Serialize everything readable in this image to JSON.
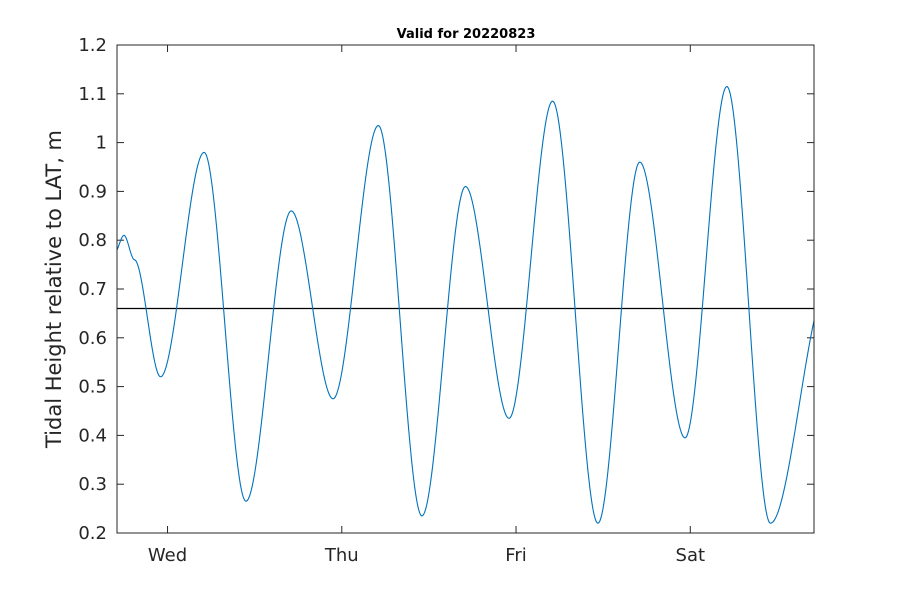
{
  "chart_data": {
    "type": "line",
    "title": "Valid for 20220823",
    "xlabel": "",
    "ylabel": "Tidal Height relative to LAT, m",
    "ylim": [
      0.2,
      1.2
    ],
    "y_ticks": [
      0.2,
      0.3,
      0.4,
      0.5,
      0.6,
      0.7,
      0.8,
      0.9,
      1.0,
      1.1,
      1.2
    ],
    "y_tick_labels": [
      "0.2",
      "0.3",
      "0.4",
      "0.5",
      "0.6",
      "0.7",
      "0.8",
      "0.9",
      "1",
      "1.1",
      "1.2"
    ],
    "x_unit": "days",
    "xlim": [
      0,
      4
    ],
    "x_ticks": [
      0.29,
      1.29,
      2.29,
      3.29
    ],
    "x_tick_labels": [
      "Wed",
      "Thu",
      "Fri",
      "Sat"
    ],
    "grid": false,
    "reference_line": {
      "y": 0.66,
      "color": "#000000"
    },
    "series": [
      {
        "color": "#0072bd",
        "x": [
          0.0,
          0.04,
          0.1,
          0.25,
          0.5,
          0.74,
          1.0,
          1.24,
          1.5,
          1.75,
          2.0,
          2.25,
          2.5,
          2.76,
          3.0,
          3.26,
          3.5,
          3.75,
          4.0
        ],
        "y": [
          0.78,
          0.81,
          0.76,
          0.52,
          0.98,
          0.265,
          0.86,
          0.475,
          1.035,
          0.235,
          0.91,
          0.435,
          1.085,
          0.22,
          0.96,
          0.395,
          1.115,
          0.22,
          0.635
        ]
      }
    ]
  }
}
